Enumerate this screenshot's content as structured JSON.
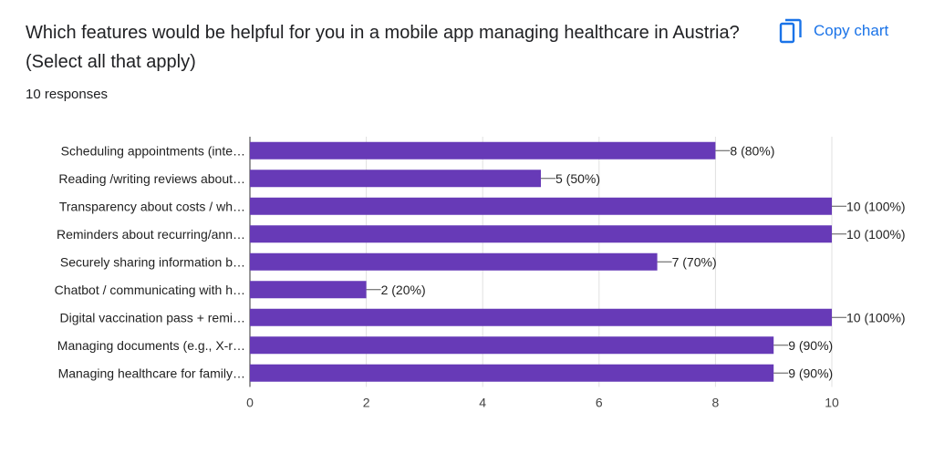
{
  "header": {
    "title": "Which features would be helpful for you in a mobile app managing healthcare in Austria? (Select all that apply)",
    "responses": "10 responses",
    "copy_label": "Copy chart",
    "copy_icon": "copy-icon"
  },
  "colors": {
    "bar": "#673ab7",
    "accent": "#1a73e8",
    "grid": "#e0e0e0"
  },
  "chart_data": {
    "type": "bar",
    "orientation": "horizontal",
    "categories": [
      "Scheduling appointments (inte…",
      "Reading /writing reviews about…",
      "Transparency about costs / wh…",
      "Reminders about recurring/ann…",
      "Securely sharing information b…",
      "Chatbot / communicating with h…",
      "Digital vaccination pass + remi…",
      "Managing documents (e.g., X-r…",
      "Managing healthcare for family…"
    ],
    "values": [
      8,
      5,
      10,
      10,
      7,
      2,
      10,
      9,
      9
    ],
    "value_labels": [
      "8 (80%)",
      "5 (50%)",
      "10 (100%)",
      "10 (100%)",
      "7 (70%)",
      "2 (20%)",
      "10 (100%)",
      "9 (90%)",
      "9 (90%)"
    ],
    "xlim": [
      0,
      10
    ],
    "xticks": [
      "0",
      "2",
      "4",
      "6",
      "8",
      "10"
    ],
    "grid": true,
    "legend": "none"
  }
}
